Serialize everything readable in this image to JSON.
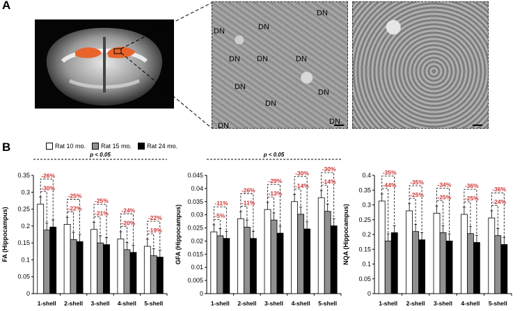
{
  "panels": {
    "a_label": "A",
    "b_label": "B"
  },
  "em_label": "DN",
  "legend": {
    "items": [
      {
        "label": "Rat 10 mo.",
        "color": "#ffffff"
      },
      {
        "label": "Rat 15 mo.",
        "color": "#909090"
      },
      {
        "label": "Rat 24 mo.",
        "color": "#000000"
      }
    ]
  },
  "colors": {
    "bar_10": "#ffffff",
    "bar_15": "#909090",
    "bar_24": "#000000",
    "annotation": "#cc3333",
    "mri_highlight": "#e8642c"
  },
  "chart_data": [
    {
      "type": "bar",
      "ylabel": "FA (Hippocampus)",
      "categories": [
        "1-shell",
        "2-shell",
        "3-shell",
        "4-shell",
        "5-shell"
      ],
      "ylim": [
        0,
        0.35
      ],
      "yticks": [
        "0",
        "0.05",
        "0.1",
        "0.15",
        "0.2",
        "0.25",
        "0.3",
        "0.35"
      ],
      "series": [
        {
          "name": "Rat 10 mo.",
          "values": [
            0.265,
            0.205,
            0.19,
            0.162,
            0.14
          ]
        },
        {
          "name": "Rat 15 mo.",
          "values": [
            0.188,
            0.16,
            0.15,
            0.13,
            0.112
          ]
        },
        {
          "name": "Rat 24 mo.",
          "values": [
            0.197,
            0.154,
            0.145,
            0.122,
            0.108
          ]
        }
      ],
      "errors": [
        [
          0.022,
          0.032
        ],
        [
          0.02,
          0.016
        ],
        [
          0.026,
          0.018
        ],
        [
          0.022,
          0.016
        ],
        [
          0.018,
          0.016
        ],
        [
          0.018,
          0.014
        ],
        [
          0.022,
          0.015
        ],
        [
          0.016,
          0.014
        ],
        [
          0.016,
          0.013
        ],
        [
          0.015,
          0.014
        ]
      ],
      "annotations": [
        {
          "category": 0,
          "top": "-26%",
          "bottom": "-30%"
        },
        {
          "category": 1,
          "top": "-25%",
          "bottom": "-22%"
        },
        {
          "category": 2,
          "top": "-25%",
          "bottom": "-21%"
        },
        {
          "category": 3,
          "top": "-24%",
          "bottom": "-20%"
        },
        {
          "category": 4,
          "top": "-22%",
          "bottom": "-19%"
        }
      ],
      "significance": "p < 0.05"
    },
    {
      "type": "bar",
      "ylabel": "GFA (Hippocampus)",
      "categories": [
        "1-shell",
        "2-shell",
        "3-shell",
        "4-shell",
        "5-shell"
      ],
      "ylim": [
        0,
        0.045
      ],
      "yticks": [
        "0",
        "0.005",
        "0.01",
        "0.015",
        "0.02",
        "0.025",
        "0.03",
        "0.035",
        "0.04",
        "0.045"
      ],
      "series": [
        {
          "name": "Rat 10 mo.",
          "values": [
            0.0235,
            0.0285,
            0.032,
            0.035,
            0.0365
          ]
        },
        {
          "name": "Rat 15 mo.",
          "values": [
            0.022,
            0.0253,
            0.028,
            0.0302,
            0.0313
          ]
        },
        {
          "name": "Rat 24 mo.",
          "values": [
            0.021,
            0.021,
            0.023,
            0.0246,
            0.0258
          ]
        }
      ],
      "annotations": [
        {
          "category": 0,
          "top": "-11%",
          "bottom": "-5%"
        },
        {
          "category": 1,
          "top": "-26%",
          "bottom": "-11%"
        },
        {
          "category": 2,
          "top": "-29%",
          "bottom": "-13%"
        },
        {
          "category": 3,
          "top": "-30%",
          "bottom": "-14%"
        },
        {
          "category": 4,
          "top": "-30%",
          "bottom": "-14%"
        }
      ],
      "significance": "p < 0.05"
    },
    {
      "type": "bar",
      "ylabel": "NQA (Hippocampus)",
      "categories": [
        "1-shell",
        "2-shell",
        "3-shell",
        "4-shell",
        "5-shell"
      ],
      "ylim": [
        0,
        0.4
      ],
      "yticks": [
        "0",
        "0.05",
        "0.1",
        "0.15",
        "0.2",
        "0.25",
        "0.3",
        "0.35",
        "0.4"
      ],
      "series": [
        {
          "name": "Rat 10 mo.",
          "values": [
            0.313,
            0.28,
            0.272,
            0.268,
            0.256
          ]
        },
        {
          "name": "Rat 15 mo.",
          "values": [
            0.178,
            0.21,
            0.206,
            0.203,
            0.196
          ]
        },
        {
          "name": "Rat 24 mo.",
          "values": [
            0.206,
            0.182,
            0.178,
            0.173,
            0.166
          ]
        }
      ],
      "annotations": [
        {
          "category": 0,
          "top": "-35%",
          "bottom": "-44%"
        },
        {
          "category": 1,
          "top": "-35%",
          "bottom": "-25%"
        },
        {
          "category": 2,
          "top": "-34%",
          "bottom": "-25%"
        },
        {
          "category": 3,
          "top": "-36%",
          "bottom": "-25%"
        },
        {
          "category": 4,
          "top": "-36%",
          "bottom": "-24%"
        }
      ]
    }
  ]
}
